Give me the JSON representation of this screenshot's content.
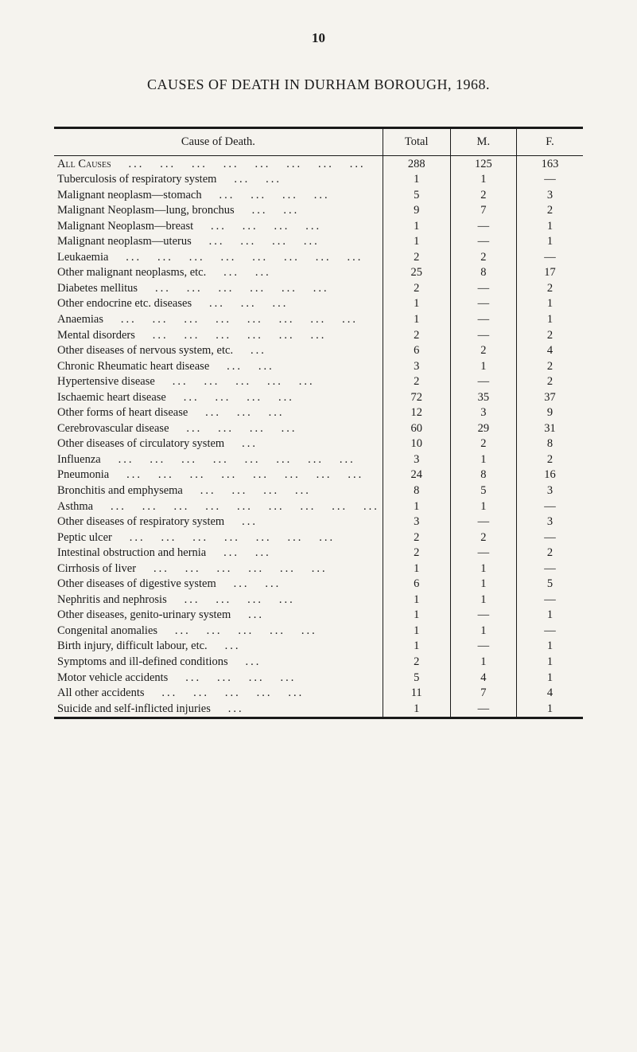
{
  "page_number": "10",
  "title": "CAUSES OF DEATH IN DURHAM BOROUGH, 1968.",
  "columns": {
    "cause": "Cause of Death.",
    "total": "Total",
    "m": "M.",
    "f": "F."
  },
  "em_dash": "—",
  "rows": [
    {
      "cause": "All Causes",
      "smallcaps": true,
      "total": "288",
      "m": "125",
      "f": "163"
    },
    {
      "cause": "Tuberculosis of respiratory system",
      "total": "1",
      "m": "1",
      "f": "—"
    },
    {
      "cause": "Malignant neoplasm—stomach",
      "total": "5",
      "m": "2",
      "f": "3"
    },
    {
      "cause": "Malignant Neoplasm—lung, bronchus",
      "total": "9",
      "m": "7",
      "f": "2"
    },
    {
      "cause": "Malignant Neoplasm—breast",
      "total": "1",
      "m": "—",
      "f": "1"
    },
    {
      "cause": "Malignant neoplasm—uterus",
      "total": "1",
      "m": "—",
      "f": "1"
    },
    {
      "cause": "Leukaemia",
      "total": "2",
      "m": "2",
      "f": "—"
    },
    {
      "cause": "Other malignant neoplasms, etc.",
      "total": "25",
      "m": "8",
      "f": "17"
    },
    {
      "cause": "Diabetes mellitus",
      "total": "2",
      "m": "—",
      "f": "2"
    },
    {
      "cause": "Other endocrine etc. diseases",
      "total": "1",
      "m": "—",
      "f": "1"
    },
    {
      "cause": "Anaemias",
      "total": "1",
      "m": "—",
      "f": "1"
    },
    {
      "cause": "Mental disorders",
      "total": "2",
      "m": "—",
      "f": "2"
    },
    {
      "cause": "Other diseases of nervous system, etc.",
      "total": "6",
      "m": "2",
      "f": "4"
    },
    {
      "cause": "Chronic Rheumatic heart disease",
      "total": "3",
      "m": "1",
      "f": "2"
    },
    {
      "cause": "Hypertensive disease",
      "total": "2",
      "m": "—",
      "f": "2"
    },
    {
      "cause": "Ischaemic heart disease",
      "total": "72",
      "m": "35",
      "f": "37"
    },
    {
      "cause": "Other forms of heart disease",
      "total": "12",
      "m": "3",
      "f": "9"
    },
    {
      "cause": "Cerebrovascular disease",
      "total": "60",
      "m": "29",
      "f": "31"
    },
    {
      "cause": "Other diseases of circulatory system",
      "total": "10",
      "m": "2",
      "f": "8"
    },
    {
      "cause": "Influenza",
      "total": "3",
      "m": "1",
      "f": "2"
    },
    {
      "cause": "Pneumonia",
      "total": "24",
      "m": "8",
      "f": "16"
    },
    {
      "cause": "Bronchitis and emphysema",
      "total": "8",
      "m": "5",
      "f": "3"
    },
    {
      "cause": "Asthma",
      "total": "1",
      "m": "1",
      "f": "—"
    },
    {
      "cause": "Other diseases of respiratory system",
      "total": "3",
      "m": "—",
      "f": "3"
    },
    {
      "cause": "Peptic ulcer",
      "total": "2",
      "m": "2",
      "f": "—"
    },
    {
      "cause": "Intestinal obstruction and hernia",
      "total": "2",
      "m": "—",
      "f": "2"
    },
    {
      "cause": "Cirrhosis of liver",
      "total": "1",
      "m": "1",
      "f": "—"
    },
    {
      "cause": "Other diseases of digestive system",
      "total": "6",
      "m": "1",
      "f": "5"
    },
    {
      "cause": "Nephritis and nephrosis",
      "total": "1",
      "m": "1",
      "f": "—"
    },
    {
      "cause": "Other diseases, genito-urinary system",
      "total": "1",
      "m": "—",
      "f": "1"
    },
    {
      "cause": "Congenital anomalies",
      "total": "1",
      "m": "1",
      "f": "—"
    },
    {
      "cause": "Birth injury, difficult labour, etc.",
      "total": "1",
      "m": "—",
      "f": "1"
    },
    {
      "cause": "Symptoms and ill-defined conditions",
      "total": "2",
      "m": "1",
      "f": "1"
    },
    {
      "cause": "Motor vehicle accidents",
      "total": "5",
      "m": "4",
      "f": "1"
    },
    {
      "cause": "All other accidents",
      "total": "11",
      "m": "7",
      "f": "4"
    },
    {
      "cause": "Suicide and self-inflicted injuries",
      "total": "1",
      "m": "—",
      "f": "1"
    }
  ],
  "style": {
    "background_color": "#f5f3ee",
    "text_color": "#1a1a1a",
    "border_color": "#1a1a1a",
    "font_family": "Times New Roman",
    "page_number_fontsize": 17,
    "title_fontsize": 18,
    "table_fontsize": 14.5,
    "top_border_width": 3,
    "bottom_border_width": 3,
    "inner_border_width": 1,
    "col_widths_percent": {
      "cause": 58,
      "total": 14,
      "m": 14,
      "f": 14
    }
  }
}
